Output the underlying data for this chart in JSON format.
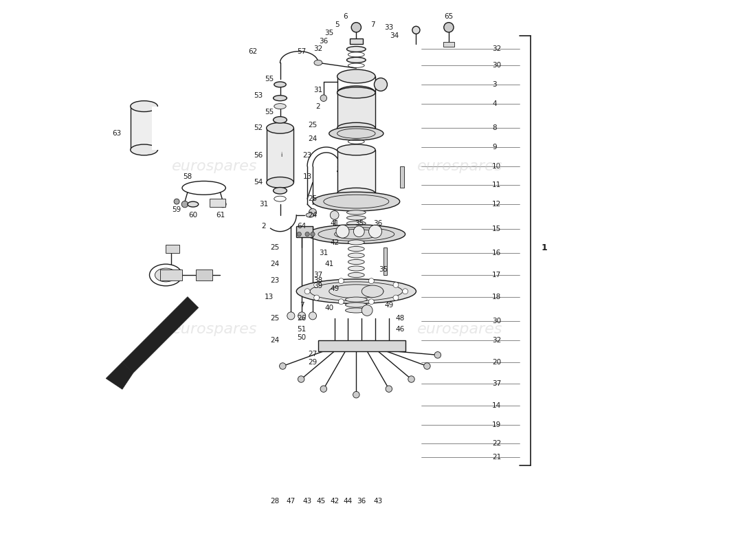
{
  "bg_color": "#ffffff",
  "line_color": "#1a1a1a",
  "lw_main": 1.0,
  "lw_thin": 0.6,
  "lw_leader": 0.5,
  "label_fs": 7.5,
  "watermark_color": "#cccccc",
  "watermark_alpha": 0.45,
  "watermark_text": "eurospares",
  "watermark_fs": 16,
  "right_bracket_label": "1",
  "right_labels_data": [
    [
      76,
      91.5,
      "32"
    ],
    [
      76,
      88.5,
      "30"
    ],
    [
      76,
      85.0,
      "3"
    ],
    [
      76,
      81.5,
      "4"
    ],
    [
      76,
      77.0,
      "8"
    ],
    [
      76,
      73.5,
      "9"
    ],
    [
      76,
      70.0,
      "10"
    ],
    [
      76,
      66.5,
      "11"
    ],
    [
      76,
      63.0,
      "12"
    ],
    [
      76,
      58.5,
      "15"
    ],
    [
      76,
      54.0,
      "16"
    ],
    [
      76,
      50.0,
      "17"
    ],
    [
      76,
      46.0,
      "18"
    ],
    [
      76,
      41.5,
      "30"
    ],
    [
      76,
      38.0,
      "32"
    ],
    [
      76,
      34.0,
      "20"
    ],
    [
      76,
      30.0,
      "37"
    ],
    [
      76,
      26.0,
      "14"
    ],
    [
      76,
      22.5,
      "19"
    ],
    [
      76,
      19.0,
      "22"
    ],
    [
      76,
      16.5,
      "21"
    ]
  ],
  "bottom_labels_data": [
    [
      36,
      8.5,
      "28"
    ],
    [
      39,
      8.5,
      "47"
    ],
    [
      42,
      8.5,
      "43"
    ],
    [
      44.5,
      8.5,
      "45"
    ],
    [
      47,
      8.5,
      "42"
    ],
    [
      49.5,
      8.5,
      "44"
    ],
    [
      52,
      8.5,
      "36"
    ],
    [
      55,
      8.5,
      "43"
    ]
  ]
}
